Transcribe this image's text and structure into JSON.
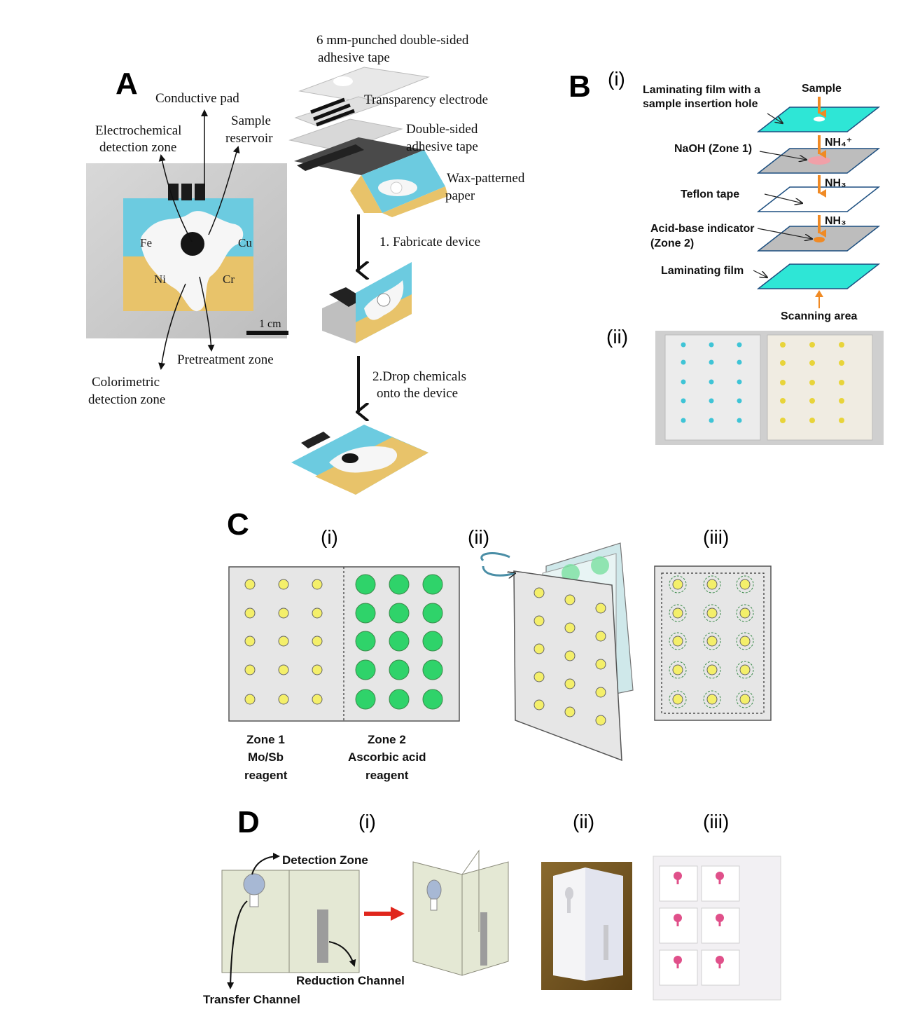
{
  "panels": {
    "A": {
      "letter": "A",
      "labels": {
        "conductive_pad": "Conductive pad",
        "electrochemical_1": "Electrochemical",
        "electrochemical_2": "detection zone",
        "sample_1": "Sample",
        "sample_2": "reservoir",
        "pretreatment": "Pretreatment zone",
        "colorimetric_1": "Colorimetric",
        "colorimetric_2": "detection zone",
        "scale": "1 cm",
        "metals": [
          "Fe",
          "Cu",
          "Ni",
          "Cr"
        ]
      },
      "layers": {
        "tape_top_1": "6 mm-punched double-sided",
        "tape_top_2": "adhesive tape",
        "electrode": "Transparency electrode",
        "tape_mid_1": "Double-sided",
        "tape_mid_2": "adhesive tape",
        "paper_1": "Wax-patterned",
        "paper_2": "paper"
      },
      "steps": {
        "step1": "1. Fabricate device",
        "step2_1": "2.Drop chemicals",
        "step2_2": "onto the device"
      }
    },
    "B": {
      "letter": "B",
      "sub_i": "(i)",
      "sub_ii": "(ii)",
      "labels": {
        "lam_hole_1": "Laminating film with a",
        "lam_hole_2": "sample insertion hole",
        "sample": "Sample",
        "naoh": "NaOH (Zone 1)",
        "nh4": "NH₄⁺",
        "teflon": "Teflon tape",
        "nh3_a": "NH₃",
        "indicator_1": "Acid-base indicator",
        "indicator_2": "(Zone 2)",
        "nh3_b": "NH₃",
        "lam_film": "Laminating film",
        "scanning": "Scanning area"
      }
    },
    "C": {
      "letter": "C",
      "sub_i": "(i)",
      "sub_ii": "(ii)",
      "sub_iii": "(iii)",
      "zone1": [
        "Zone 1",
        "Mo/Sb",
        "reagent"
      ],
      "zone2": [
        "Zone 2",
        "Ascorbic acid",
        "reagent"
      ]
    },
    "D": {
      "letter": "D",
      "sub_i": "(i)",
      "sub_ii": "(ii)",
      "sub_iii": "(iii)",
      "labels": {
        "detection": "Detection Zone",
        "reduction": "Reduction Channel",
        "transfer": "Transfer Channel"
      }
    }
  },
  "colors": {
    "cyan_film": "#2ee6d6",
    "yellow_spot": "#f4ef6a",
    "green_spot": "#2fd36a",
    "orange_arrow": "#f08a24",
    "sheet_grey": "#e6e6e6",
    "device_cyan": "#6ccbe0",
    "device_yellow": "#e8c36a",
    "d_paper": "#e4e8d4",
    "red_arrow": "#e0261c"
  }
}
